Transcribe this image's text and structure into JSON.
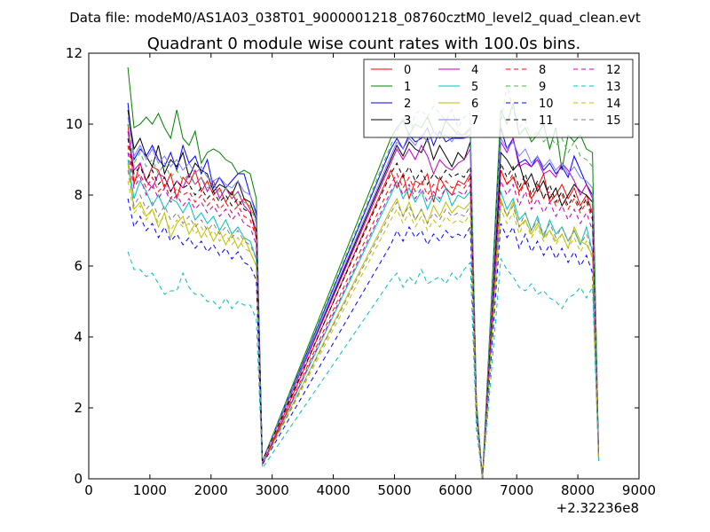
{
  "chart_data": {
    "type": "line",
    "suptitle": "Data file: modeM0/AS1A03_038T01_9000001218_08760cztM0_level2_quad_clean.evt",
    "title": "Quadrant 0 module wise count rates with 100.0s bins.",
    "xlabel": "",
    "ylabel": "",
    "x_offset_label": "+2.32236e8",
    "xlim": [
      0,
      9000
    ],
    "ylim": [
      0,
      12
    ],
    "x_ticks": [
      0,
      1000,
      2000,
      3000,
      4000,
      5000,
      6000,
      7000,
      8000,
      9000
    ],
    "y_ticks": [
      0,
      2,
      4,
      6,
      8,
      10,
      12
    ],
    "legend_position": "top-right",
    "legend_columns": 4,
    "bin_x": {
      "segment1": [
        640,
        740,
        840,
        940,
        1040,
        1140,
        1240,
        1340,
        1440,
        1540,
        1640,
        1740,
        1840,
        1940,
        2040,
        2140,
        2240,
        2340,
        2440,
        2540,
        2640,
        2740,
        2840
      ],
      "segment2": [
        4940,
        5040,
        5140,
        5240,
        5340,
        5440,
        5540,
        5640,
        5740,
        5840,
        5940,
        6040,
        6140,
        6240,
        6340,
        6440
      ],
      "segment3": [
        6740,
        6840,
        6940,
        7040,
        7140,
        7240,
        7340,
        7440,
        7540,
        7640,
        7740,
        7840,
        7940,
        8040,
        8140,
        8240,
        8340
      ]
    },
    "series": [
      {
        "name": "0",
        "color": "#ff0000",
        "dashed": false,
        "values": [
          10.0,
          8.3,
          8.9,
          8.4,
          8.8,
          8.7,
          8.2,
          8.6,
          7.9,
          8.5,
          8.3,
          8.7,
          8.1,
          8.4,
          8.0,
          8.2,
          7.8,
          8.1,
          7.7,
          7.9,
          7.6,
          6.8,
          0.4,
          8.7,
          8.2,
          8.6,
          7.9,
          8.4,
          8.3,
          8.6,
          7.8,
          8.5,
          8.2,
          8.0,
          8.4,
          8.3,
          8.6,
          2.0,
          0.0,
          8.7,
          8.3,
          8.5,
          8.1,
          8.4,
          7.9,
          8.2,
          8.6,
          7.8,
          8.0,
          8.3,
          7.9,
          8.2,
          7.7,
          8.0,
          7.5,
          0.7
        ]
      },
      {
        "name": "1",
        "color": "#008000",
        "dashed": false,
        "values": [
          11.6,
          9.9,
          10.0,
          10.2,
          10.0,
          10.3,
          9.9,
          9.6,
          10.4,
          9.6,
          9.4,
          9.8,
          8.9,
          9.2,
          9.3,
          9.2,
          9.0,
          8.9,
          8.6,
          8.7,
          8.6,
          7.9,
          0.5,
          9.6,
          9.9,
          10.1,
          9.7,
          10.0,
          9.9,
          10.2,
          9.8,
          9.6,
          10.1,
          9.9,
          9.7,
          9.7,
          9.9,
          2.2,
          0.0,
          10.4,
          10.0,
          10.6,
          9.7,
          9.9,
          9.5,
          9.7,
          10.0,
          9.3,
          9.9,
          8.7,
          9.7,
          9.5,
          9.7,
          9.3,
          9.2,
          0.7
        ]
      },
      {
        "name": "2",
        "color": "#0000ff",
        "dashed": false,
        "values": [
          10.6,
          9.0,
          9.3,
          9.1,
          9.4,
          9.0,
          8.8,
          9.2,
          8.7,
          9.4,
          8.9,
          9.1,
          8.6,
          9.0,
          8.2,
          8.5,
          8.2,
          8.4,
          8.6,
          8.6,
          8.0,
          7.5,
          0.5,
          9.3,
          9.6,
          9.3,
          9.7,
          9.5,
          9.6,
          9.9,
          9.4,
          9.8,
          9.5,
          9.6,
          9.6,
          9.6,
          9.7,
          2.1,
          0.0,
          9.9,
          9.3,
          9.6,
          8.9,
          9.0,
          8.8,
          9.1,
          8.7,
          8.9,
          8.6,
          8.8,
          8.5,
          9.1,
          8.7,
          8.3,
          8.0,
          0.7
        ]
      },
      {
        "name": "3",
        "color": "#000000",
        "dashed": false,
        "values": [
          10.4,
          9.3,
          9.6,
          9.1,
          8.8,
          9.4,
          8.6,
          9.0,
          8.8,
          9.2,
          8.5,
          8.9,
          8.7,
          8.6,
          8.1,
          8.3,
          8.2,
          8.0,
          8.4,
          7.9,
          7.8,
          7.3,
          0.5,
          9.0,
          9.4,
          9.1,
          9.5,
          9.3,
          9.2,
          9.6,
          9.0,
          9.4,
          9.1,
          8.8,
          9.2,
          9.0,
          9.5,
          2.0,
          0.0,
          9.2,
          9.0,
          8.7,
          8.9,
          8.3,
          8.6,
          8.1,
          8.4,
          7.9,
          8.2,
          7.7,
          8.0,
          8.3,
          8.1,
          8.0,
          7.8,
          0.7
        ]
      },
      {
        "name": "4",
        "color": "#bf00bf",
        "dashed": false,
        "values": [
          9.8,
          8.7,
          8.9,
          8.4,
          8.2,
          8.6,
          8.5,
          8.1,
          8.4,
          8.2,
          8.6,
          8.3,
          8.5,
          8.1,
          8.4,
          7.9,
          8.2,
          7.9,
          8.1,
          7.7,
          7.5,
          7.0,
          0.5,
          8.9,
          9.3,
          9.0,
          9.3,
          9.0,
          9.4,
          9.1,
          8.6,
          9.0,
          8.8,
          8.7,
          8.9,
          9.0,
          9.3,
          2.0,
          0.0,
          9.5,
          9.2,
          9.6,
          8.8,
          8.9,
          8.8,
          9.0,
          8.6,
          8.7,
          8.5,
          8.9,
          8.7,
          8.4,
          8.0,
          8.3,
          7.9,
          0.7
        ]
      },
      {
        "name": "5",
        "color": "#00bfbf",
        "dashed": false,
        "values": [
          9.0,
          7.9,
          8.4,
          8.1,
          7.7,
          8.0,
          7.6,
          7.9,
          7.8,
          7.5,
          7.8,
          7.3,
          7.5,
          7.2,
          7.4,
          7.0,
          7.3,
          6.9,
          7.1,
          6.8,
          6.7,
          6.2,
          0.4,
          8.0,
          8.4,
          7.9,
          8.2,
          7.8,
          8.1,
          7.6,
          8.0,
          7.8,
          8.2,
          7.7,
          8.0,
          7.9,
          8.1,
          1.9,
          0.0,
          8.1,
          7.6,
          7.9,
          7.3,
          7.5,
          7.0,
          7.4,
          6.8,
          7.3,
          6.9,
          7.1,
          6.7,
          7.0,
          6.6,
          7.1,
          6.4,
          0.6
        ]
      },
      {
        "name": "6",
        "color": "#bfbf00",
        "dashed": false,
        "values": [
          8.9,
          7.6,
          7.8,
          7.4,
          7.6,
          7.1,
          7.5,
          6.8,
          7.2,
          7.4,
          6.9,
          7.2,
          6.8,
          7.1,
          6.7,
          7.0,
          6.6,
          6.9,
          6.5,
          6.8,
          6.4,
          6.0,
          0.4,
          7.6,
          7.9,
          7.4,
          7.8,
          7.3,
          7.6,
          7.2,
          7.7,
          7.4,
          7.8,
          7.5,
          7.7,
          7.6,
          7.8,
          1.8,
          0.0,
          7.9,
          7.4,
          7.8,
          7.1,
          7.3,
          6.9,
          7.2,
          6.8,
          7.0,
          6.7,
          6.9,
          6.5,
          7.1,
          6.7,
          6.6,
          6.3,
          0.6
        ]
      },
      {
        "name": "7",
        "color": "#7f7fff",
        "dashed": false,
        "values": [
          10.2,
          9.1,
          9.4,
          9.0,
          9.3,
          8.9,
          9.1,
          8.8,
          9.0,
          8.7,
          8.9,
          8.6,
          8.8,
          8.5,
          8.4,
          8.5,
          8.3,
          8.2,
          8.4,
          8.1,
          8.0,
          7.4,
          0.5,
          9.1,
          9.5,
          9.3,
          9.6,
          9.4,
          9.7,
          9.5,
          9.8,
          9.6,
          9.7,
          9.5,
          9.8,
          9.6,
          9.9,
          2.1,
          0.0,
          9.6,
          9.3,
          9.5,
          9.1,
          9.3,
          8.9,
          9.1,
          8.8,
          9.0,
          8.7,
          8.9,
          8.6,
          8.8,
          8.5,
          8.4,
          8.2,
          0.7
        ]
      },
      {
        "name": "8",
        "color": "#ff0000",
        "dashed": true,
        "values": [
          9.4,
          8.4,
          8.6,
          8.2,
          8.5,
          8.1,
          8.3,
          7.9,
          8.2,
          8.0,
          8.1,
          7.8,
          8.0,
          7.7,
          7.9,
          7.6,
          7.8,
          7.5,
          7.7,
          7.4,
          7.3,
          6.8,
          0.4,
          8.3,
          8.6,
          8.2,
          8.5,
          8.1,
          8.4,
          8.0,
          8.3,
          8.1,
          8.4,
          8.2,
          8.3,
          8.2,
          8.5,
          1.9,
          0.0,
          8.7,
          8.3,
          8.6,
          8.0,
          8.4,
          7.8,
          8.3,
          7.9,
          8.1,
          7.7,
          8.0,
          7.6,
          7.9,
          7.5,
          7.8,
          7.3,
          0.7
        ]
      },
      {
        "name": "9",
        "color": "#50b050",
        "dashed": true,
        "values": [
          10.0,
          8.9,
          9.2,
          8.8,
          9.0,
          8.6,
          8.9,
          8.5,
          8.7,
          8.4,
          8.6,
          8.3,
          8.5,
          8.2,
          8.3,
          8.1,
          8.2,
          7.9,
          8.1,
          7.8,
          7.7,
          7.2,
          0.5,
          9.4,
          9.8,
          10.2,
          9.6,
          10.3,
          10.4,
          10.2,
          10.5,
          10.3,
          10.1,
          10.4,
          9.9,
          10.2,
          10.3,
          2.2,
          0.0,
          10.0,
          11.1,
          10.4,
          9.9,
          10.1,
          9.6,
          9.8,
          9.5,
          9.7,
          9.4,
          9.6,
          9.2,
          9.5,
          9.1,
          9.0,
          8.8,
          0.7
        ]
      },
      {
        "name": "10",
        "color": "#0000ff",
        "dashed": true,
        "values": [
          7.9,
          7.1,
          7.4,
          7.0,
          7.2,
          6.8,
          7.1,
          6.7,
          6.9,
          6.6,
          6.8,
          6.5,
          6.7,
          6.4,
          6.6,
          6.3,
          6.5,
          6.2,
          6.4,
          6.1,
          6.0,
          5.6,
          0.4,
          6.6,
          7.0,
          6.7,
          7.1,
          6.8,
          7.0,
          6.6,
          6.9,
          6.7,
          7.0,
          6.8,
          6.9,
          6.8,
          7.1,
          1.7,
          0.0,
          7.2,
          6.8,
          7.1,
          6.5,
          6.9,
          6.4,
          6.7,
          6.3,
          6.6,
          6.2,
          6.5,
          6.1,
          6.4,
          6.0,
          6.3,
          5.8,
          0.6
        ]
      },
      {
        "name": "11",
        "color": "#000000",
        "dashed": true,
        "values": [
          9.6,
          8.6,
          8.8,
          8.4,
          8.7,
          8.3,
          8.5,
          8.1,
          8.4,
          8.2,
          8.3,
          8.0,
          8.2,
          7.9,
          8.1,
          7.8,
          8.0,
          7.7,
          7.9,
          7.6,
          7.5,
          7.0,
          0.5,
          8.6,
          8.9,
          8.5,
          8.8,
          8.4,
          8.7,
          8.3,
          8.6,
          8.4,
          8.7,
          8.5,
          8.6,
          8.5,
          8.8,
          2.0,
          0.0,
          8.9,
          8.5,
          8.8,
          8.2,
          8.6,
          8.0,
          8.4,
          7.9,
          8.3,
          7.8,
          8.1,
          7.7,
          8.0,
          7.6,
          7.9,
          7.4,
          0.7
        ]
      },
      {
        "name": "12",
        "color": "#bf00bf",
        "dashed": true,
        "values": [
          9.2,
          8.2,
          8.5,
          8.0,
          8.3,
          7.9,
          8.2,
          7.8,
          8.0,
          7.7,
          7.9,
          7.6,
          7.8,
          7.5,
          7.7,
          7.4,
          7.6,
          7.3,
          7.5,
          7.2,
          7.1,
          6.6,
          0.4,
          8.1,
          8.4,
          8.0,
          8.3,
          7.9,
          8.2,
          7.8,
          8.1,
          7.9,
          8.2,
          8.0,
          8.1,
          8.0,
          8.3,
          1.9,
          0.0,
          8.4,
          8.0,
          8.3,
          7.7,
          8.1,
          7.6,
          7.9,
          7.5,
          7.8,
          7.4,
          7.7,
          7.3,
          7.6,
          7.2,
          7.5,
          7.0,
          0.6
        ]
      },
      {
        "name": "13",
        "color": "#00bfbf",
        "dashed": true,
        "values": [
          6.4,
          5.9,
          5.9,
          5.7,
          5.8,
          5.5,
          5.2,
          5.3,
          5.3,
          5.8,
          5.4,
          5.2,
          5.2,
          5.0,
          5.0,
          4.8,
          5.1,
          4.8,
          5.0,
          4.9,
          4.9,
          4.5,
          0.3,
          5.6,
          5.8,
          5.4,
          5.7,
          5.5,
          5.9,
          5.5,
          5.6,
          5.7,
          5.5,
          5.8,
          5.6,
          5.9,
          6.1,
          1.4,
          0.0,
          6.2,
          5.9,
          5.7,
          5.4,
          5.3,
          5.5,
          5.2,
          5.3,
          5.1,
          5.0,
          4.8,
          5.1,
          5.2,
          5.4,
          5.1,
          5.4,
          0.5
        ]
      },
      {
        "name": "14",
        "color": "#bfbf00",
        "dashed": true,
        "values": [
          8.4,
          7.5,
          7.7,
          7.3,
          7.6,
          7.2,
          7.4,
          7.0,
          7.3,
          7.1,
          7.2,
          6.9,
          7.1,
          6.8,
          7.0,
          6.7,
          6.9,
          6.6,
          6.8,
          6.5,
          6.4,
          6.0,
          0.4,
          7.3,
          7.6,
          7.2,
          7.5,
          7.1,
          7.4,
          7.0,
          7.3,
          7.1,
          7.4,
          7.2,
          7.3,
          7.2,
          7.5,
          1.8,
          0.0,
          7.6,
          7.2,
          7.5,
          6.9,
          7.3,
          6.8,
          7.1,
          6.7,
          7.0,
          6.6,
          6.9,
          6.5,
          6.8,
          6.4,
          6.7,
          6.2,
          0.6
        ]
      },
      {
        "name": "15",
        "color": "#808080",
        "dashed": true,
        "values": [
          8.7,
          7.7,
          8.0,
          7.6,
          7.8,
          7.4,
          7.7,
          7.3,
          7.5,
          7.2,
          7.4,
          7.1,
          7.3,
          7.0,
          7.2,
          6.9,
          7.1,
          6.8,
          7.0,
          6.7,
          6.6,
          6.2,
          0.4,
          7.5,
          7.8,
          7.4,
          7.7,
          7.3,
          7.6,
          7.2,
          7.5,
          7.3,
          7.6,
          7.4,
          7.5,
          7.4,
          7.7,
          1.8,
          0.0,
          7.8,
          7.4,
          7.7,
          7.1,
          7.5,
          7.0,
          7.3,
          6.9,
          7.2,
          6.8,
          7.1,
          6.7,
          7.0,
          6.6,
          6.9,
          6.4,
          0.6
        ]
      }
    ]
  }
}
